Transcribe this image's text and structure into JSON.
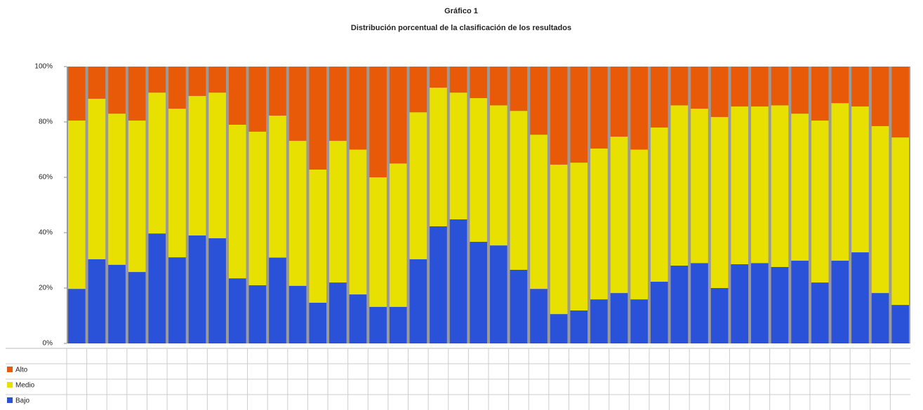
{
  "chart_data": {
    "type": "stacked-bar",
    "title": "Gráfico 1",
    "subtitle": "Distribución porcentual de la clasificación de los resultados",
    "categories": [
      null,
      null,
      null,
      null,
      null,
      null,
      null,
      null,
      null,
      null,
      null,
      null,
      null,
      null,
      null,
      null,
      null,
      null,
      null,
      null,
      null,
      null,
      null,
      null,
      null,
      null,
      null,
      null,
      null,
      null,
      null,
      null,
      null,
      null,
      null,
      null,
      null,
      null,
      null,
      null,
      null,
      null
    ],
    "series": [
      {
        "name": "Bajo",
        "color": "#2a52d8",
        "values": [
          19.7,
          30.4,
          28.4,
          25.8,
          39.7,
          31.1,
          39.0,
          38.0,
          23.5,
          21.0,
          31.0,
          20.8,
          14.7,
          22.0,
          17.7,
          13.2,
          13.2,
          30.4,
          42.3,
          44.8,
          36.7,
          35.4,
          26.6,
          19.7,
          10.6,
          11.9,
          15.9,
          18.2,
          15.9,
          22.3,
          28.1,
          29.0,
          20.0,
          28.6,
          29.0,
          27.6,
          29.9,
          22.0,
          29.9,
          32.9,
          18.2,
          13.9
        ]
      },
      {
        "name": "Medio",
        "color": "#e8e000",
        "values": [
          60.8,
          58.0,
          54.6,
          54.7,
          50.9,
          53.7,
          50.4,
          52.6,
          55.5,
          55.5,
          51.3,
          52.4,
          48.1,
          51.2,
          52.3,
          46.8,
          51.8,
          53.1,
          50.1,
          45.8,
          51.9,
          50.6,
          57.4,
          55.7,
          54.0,
          53.4,
          54.5,
          56.5,
          54.1,
          55.7,
          57.9,
          55.8,
          61.8,
          57.0,
          56.6,
          58.4,
          53.1,
          58.5,
          56.9,
          52.7,
          60.3,
          60.5
        ]
      },
      {
        "name": "Alto",
        "color": "#e85a08",
        "values": [
          19.5,
          11.6,
          17.0,
          19.5,
          9.4,
          15.2,
          10.6,
          9.4,
          21.0,
          23.5,
          17.7,
          26.8,
          37.2,
          26.8,
          30.0,
          40.0,
          35.0,
          16.5,
          7.6,
          9.4,
          11.4,
          14.0,
          16.0,
          24.6,
          35.4,
          34.7,
          29.6,
          25.3,
          30.0,
          22.0,
          14.0,
          15.2,
          18.2,
          14.4,
          14.4,
          14.0,
          17.0,
          19.5,
          13.2,
          14.4,
          21.5,
          25.6
        ]
      }
    ],
    "ylim": [
      0,
      100
    ],
    "yticks": [
      {
        "value": 0,
        "label": "0%"
      },
      {
        "value": 20,
        "label": "20%"
      },
      {
        "value": 40,
        "label": "40%"
      },
      {
        "value": 60,
        "label": "60%"
      },
      {
        "value": 80,
        "label": "80%"
      },
      {
        "value": 100,
        "label": "100%"
      }
    ],
    "grid": false
  }
}
